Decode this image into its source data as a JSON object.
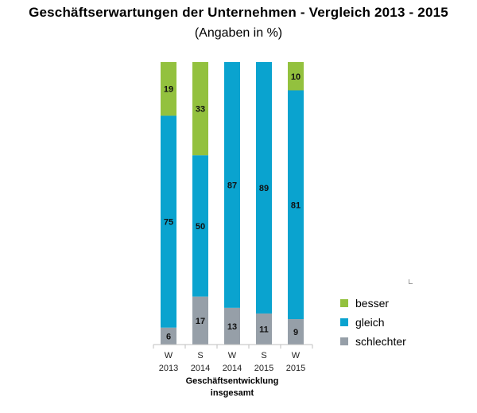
{
  "chart_data": {
    "type": "bar",
    "stacked": true,
    "title": "Geschäftserwartungen  der Unternehmen - Vergleich 2013 - 2015",
    "subtitle": "(Angaben in %)",
    "categories": [
      {
        "line1": "W",
        "line2": "2013"
      },
      {
        "line1": "S",
        "line2": "2014"
      },
      {
        "line1": "W",
        "line2": "2014"
      },
      {
        "line1": "S",
        "line2": "2015"
      },
      {
        "line1": "W",
        "line2": "2015"
      }
    ],
    "series": [
      {
        "name": "schlechter",
        "color": "#969fa8",
        "values": [
          6,
          17,
          13,
          11,
          9
        ],
        "labels": [
          "6",
          "17",
          "13",
          "11",
          "9"
        ]
      },
      {
        "name": "gleich",
        "color": "#0aa3cf",
        "values": [
          75,
          50,
          87,
          89,
          81
        ],
        "labels": [
          "75",
          "50",
          "87",
          "89",
          "81"
        ]
      },
      {
        "name": "besser",
        "color": "#93c13e",
        "values": [
          19,
          33,
          0,
          0,
          10
        ],
        "labels": [
          "19",
          "33",
          "",
          "",
          "10"
        ]
      }
    ],
    "xlabel": "Geschäftsentwicklung insgesamt",
    "xlabel_line1": "Geschäftsentwicklung",
    "xlabel_line2": "insgesamt",
    "ylim": [
      0,
      100
    ],
    "legend": {
      "position": "bottom-right",
      "entries": [
        {
          "name": "besser",
          "color": "#93c13e"
        },
        {
          "name": "gleich",
          "color": "#0aa3cf"
        },
        {
          "name": "schlechter",
          "color": "#969fa8"
        }
      ]
    }
  }
}
